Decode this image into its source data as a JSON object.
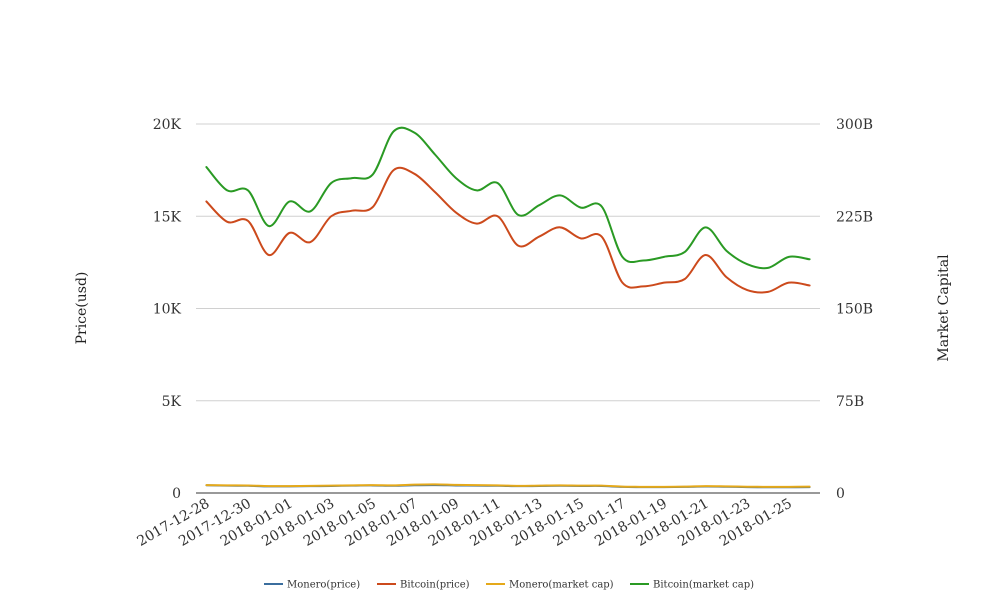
{
  "chart_data": {
    "type": "line",
    "x": [
      "2017-12-28",
      "2017-12-29",
      "2017-12-30",
      "2017-12-31",
      "2018-01-01",
      "2018-01-02",
      "2018-01-03",
      "2018-01-04",
      "2018-01-05",
      "2018-01-06",
      "2018-01-07",
      "2018-01-08",
      "2018-01-09",
      "2018-01-10",
      "2018-01-11",
      "2018-01-12",
      "2018-01-13",
      "2018-01-14",
      "2018-01-15",
      "2018-01-16",
      "2018-01-17",
      "2018-01-18",
      "2018-01-19",
      "2018-01-20",
      "2018-01-21",
      "2018-01-22",
      "2018-01-23",
      "2018-01-24",
      "2018-01-25",
      "2018-01-26"
    ],
    "xtick_labels": [
      "2017-12-28",
      "2017-12-30",
      "2018-01-01",
      "2018-01-03",
      "2018-01-05",
      "2018-01-07",
      "2018-01-09",
      "2018-01-11",
      "2018-01-13",
      "2018-01-15",
      "2018-01-17",
      "2018-01-19",
      "2018-01-21",
      "2018-01-23",
      "2018-01-25"
    ],
    "y_left": {
      "label": "Price(usd)",
      "range": [
        0,
        20000
      ],
      "ticks": [
        0,
        5000,
        10000,
        15000,
        20000
      ],
      "tick_labels": [
        "0",
        "5K",
        "10K",
        "15K",
        "20K"
      ]
    },
    "y_right": {
      "label": "Market Capital",
      "range": [
        0,
        300000000000
      ],
      "ticks": [
        0,
        75000000000,
        150000000000,
        225000000000,
        300000000000
      ],
      "tick_labels": [
        "0",
        "75B",
        "150B",
        "225B",
        "300B"
      ]
    },
    "grid": true,
    "legend_position": "bottom",
    "series": [
      {
        "name": "Monero(price)",
        "axis": "left",
        "color": "#3b6e9e",
        "values": [
          420,
          400,
          390,
          360,
          360,
          370,
          380,
          400,
          410,
          390,
          420,
          430,
          410,
          400,
          390,
          370,
          380,
          390,
          380,
          380,
          330,
          320,
          320,
          330,
          350,
          340,
          320,
          310,
          310,
          320
        ]
      },
      {
        "name": "Bitcoin(price)",
        "axis": "left",
        "color": "#cc4a1c",
        "values": [
          15800,
          14700,
          14750,
          12900,
          14100,
          13600,
          15000,
          15300,
          15500,
          17500,
          17300,
          16300,
          15200,
          14600,
          15000,
          13400,
          13900,
          14400,
          13800,
          13900,
          11400,
          11200,
          11400,
          11600,
          12900,
          11700,
          11000,
          10900,
          11400,
          11250
        ]
      },
      {
        "name": "Monero(market cap)",
        "axis": "right",
        "color": "#e5a91a",
        "values": [
          6400000000,
          6200000000,
          6100000000,
          5600000000,
          5600000000,
          5800000000,
          6000000000,
          6200000000,
          6400000000,
          6200000000,
          6800000000,
          7000000000,
          6600000000,
          6400000000,
          6200000000,
          5800000000,
          6000000000,
          6200000000,
          6000000000,
          6000000000,
          5200000000,
          5000000000,
          5000000000,
          5200000000,
          5600000000,
          5400000000,
          5100000000,
          5000000000,
          5000000000,
          5200000000
        ]
      },
      {
        "name": "Bitcoin(market cap)",
        "axis": "right",
        "color": "#2a9a24",
        "values": [
          265000000000,
          246000000000,
          246000000000,
          217000000000,
          237000000000,
          229000000000,
          252000000000,
          256000000000,
          259000000000,
          294000000000,
          293000000000,
          275000000000,
          256000000000,
          246000000000,
          252000000000,
          226000000000,
          234000000000,
          242000000000,
          232000000000,
          233000000000,
          192000000000,
          189000000000,
          192000000000,
          196000000000,
          216000000000,
          197000000000,
          186000000000,
          183000000000,
          192000000000,
          190000000000
        ]
      }
    ]
  }
}
